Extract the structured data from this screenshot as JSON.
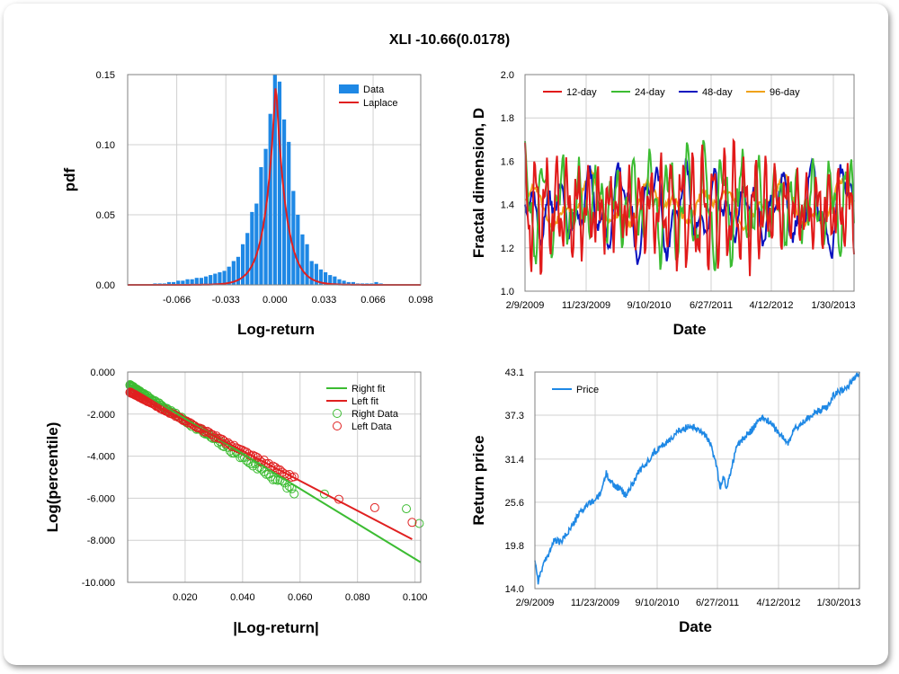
{
  "title": "XLI -10.66(0.0178)",
  "chart_data": [
    {
      "type": "bar",
      "id": "pdf",
      "xlabel": "Log-return",
      "ylabel": "pdf",
      "xlim": [
        -0.099,
        0.098
      ],
      "ylim": [
        0,
        0.15
      ],
      "xticks": [
        "-0.066",
        "-0.033",
        "0.000",
        "0.033",
        "0.066",
        "0.098"
      ],
      "xtick_values": [
        -0.066,
        -0.033,
        0.0,
        0.033,
        0.066,
        0.098
      ],
      "yticks": [
        "0.00",
        "0.05",
        "0.10",
        "0.15"
      ],
      "ytick_values": [
        0,
        0.05,
        0.1,
        0.15
      ],
      "legend": [
        "Data",
        "Laplace"
      ],
      "bar_width": 0.0031,
      "x": [
        -0.0806,
        -0.0774,
        -0.0743,
        -0.0712,
        -0.0681,
        -0.065,
        -0.0619,
        -0.0588,
        -0.0557,
        -0.0526,
        -0.0495,
        -0.0464,
        -0.0433,
        -0.0402,
        -0.0371,
        -0.034,
        -0.0309,
        -0.0278,
        -0.0247,
        -0.0216,
        -0.0185,
        -0.0154,
        -0.0124,
        -0.0093,
        -0.0062,
        -0.0031,
        0.0,
        0.0031,
        0.0062,
        0.0093,
        0.0124,
        0.0154,
        0.0185,
        0.0216,
        0.0247,
        0.0278,
        0.0309,
        0.034,
        0.0371,
        0.0402,
        0.0433,
        0.0464,
        0.0495,
        0.0526,
        0.0557,
        0.0588,
        0.0619,
        0.065,
        0.0681,
        0.0712
      ],
      "values": [
        0.001,
        0.001,
        0.001,
        0.002,
        0.002,
        0.003,
        0.003,
        0.004,
        0.004,
        0.005,
        0.005,
        0.006,
        0.007,
        0.008,
        0.009,
        0.01,
        0.013,
        0.017,
        0.02,
        0.029,
        0.037,
        0.052,
        0.058,
        0.084,
        0.097,
        0.122,
        0.15,
        0.145,
        0.118,
        0.102,
        0.067,
        0.05,
        0.036,
        0.029,
        0.017,
        0.015,
        0.011,
        0.009,
        0.007,
        0.006,
        0.004,
        0.003,
        0.002,
        0.002,
        0.001,
        0.001,
        0.001,
        0.001,
        0.002,
        0.001
      ],
      "laplace_peak": 0.146
    },
    {
      "type": "line",
      "id": "fractal",
      "xlabel": "Date",
      "ylabel": "Fractal dimension, D",
      "ylim": [
        1.0,
        2.0
      ],
      "yticks": [
        "1.0",
        "1.2",
        "1.4",
        "1.6",
        "1.8",
        "2.0"
      ],
      "ytick_values": [
        1.0,
        1.2,
        1.4,
        1.6,
        1.8,
        2.0
      ],
      "xticks": [
        "2/9/2009",
        "11/23/2009",
        "9/10/2010",
        "6/27/2011",
        "4/12/2012",
        "1/30/2013"
      ],
      "series": [
        {
          "name": "12-day",
          "color": "#e11a1a"
        },
        {
          "name": "24-day",
          "color": "#3cbc32"
        },
        {
          "name": "48-day",
          "color": "#0a12bf"
        },
        {
          "name": "96-day",
          "color": "#f0a21a"
        }
      ]
    },
    {
      "type": "scatter",
      "id": "tail",
      "xlabel": "|Log-return|",
      "ylabel": "Log(percentile)",
      "xlim": [
        0,
        0.102
      ],
      "ylim": [
        -10.0,
        0.0
      ],
      "xticks": [
        "0.020",
        "0.040",
        "0.060",
        "0.080",
        "0.100"
      ],
      "xtick_values": [
        0.02,
        0.04,
        0.06,
        0.08,
        0.1
      ],
      "yticks": [
        "0.000",
        "-2.000",
        "-4.000",
        "-6.000",
        "-8.000",
        "-10.000"
      ],
      "ytick_values": [
        0,
        -2,
        -4,
        -6,
        -8,
        -10
      ],
      "legend": [
        "Right fit",
        "Left fit",
        "Right Data",
        "Left Data"
      ],
      "right_fit": {
        "x": [
          0.0,
          0.102
        ],
        "y": [
          -0.55,
          -9.05
        ]
      },
      "left_fit": {
        "x": [
          0.0,
          0.099
        ],
        "y": [
          -0.9,
          -7.95
        ]
      },
      "right_data_extremes": [
        [
          0.0685,
          -5.8
        ],
        [
          0.097,
          -6.5
        ],
        [
          0.1015,
          -7.2
        ]
      ],
      "left_data_extremes": [
        [
          0.0735,
          -6.05
        ],
        [
          0.086,
          -6.45
        ],
        [
          0.099,
          -7.15
        ]
      ]
    },
    {
      "type": "line",
      "id": "price",
      "xlabel": "Date",
      "ylabel": "Return price",
      "ylim": [
        14.0,
        43.1
      ],
      "yticks": [
        "14.0",
        "19.8",
        "25.6",
        "31.4",
        "37.3",
        "43.1"
      ],
      "ytick_values": [
        14.0,
        19.8,
        25.6,
        31.4,
        37.3,
        43.1
      ],
      "xticks": [
        "2/9/2009",
        "11/23/2009",
        "9/10/2010",
        "6/27/2011",
        "4/12/2012",
        "1/30/2013"
      ],
      "series": [
        {
          "name": "Price",
          "color": "#1e88e5"
        }
      ],
      "t": [
        0,
        0.01,
        0.02,
        0.04,
        0.06,
        0.08,
        0.1,
        0.12,
        0.14,
        0.16,
        0.18,
        0.2,
        0.22,
        0.24,
        0.26,
        0.28,
        0.3,
        0.32,
        0.34,
        0.36,
        0.38,
        0.4,
        0.42,
        0.44,
        0.46,
        0.48,
        0.5,
        0.52,
        0.54,
        0.56,
        0.57,
        0.58,
        0.59,
        0.6,
        0.61,
        0.62,
        0.64,
        0.66,
        0.68,
        0.7,
        0.72,
        0.74,
        0.76,
        0.78,
        0.8,
        0.82,
        0.84,
        0.86,
        0.88,
        0.9,
        0.92,
        0.94,
        0.96,
        0.98,
        1.0
      ],
      "values": [
        18.0,
        15.0,
        16.5,
        18.5,
        20.5,
        20.2,
        21.5,
        22.8,
        24.3,
        25.2,
        25.8,
        26.5,
        29.5,
        28.0,
        27.5,
        26.5,
        28.0,
        29.8,
        30.5,
        32.0,
        32.8,
        33.5,
        34.2,
        35.0,
        35.5,
        36.0,
        35.5,
        35.0,
        33.5,
        30.5,
        27.5,
        29.0,
        27.5,
        29.0,
        31.0,
        33.0,
        34.0,
        35.0,
        36.0,
        37.0,
        36.5,
        35.5,
        34.5,
        33.5,
        35.5,
        36.0,
        37.0,
        37.5,
        38.0,
        38.5,
        40.0,
        40.5,
        41.0,
        42.0,
        43.1
      ]
    }
  ]
}
